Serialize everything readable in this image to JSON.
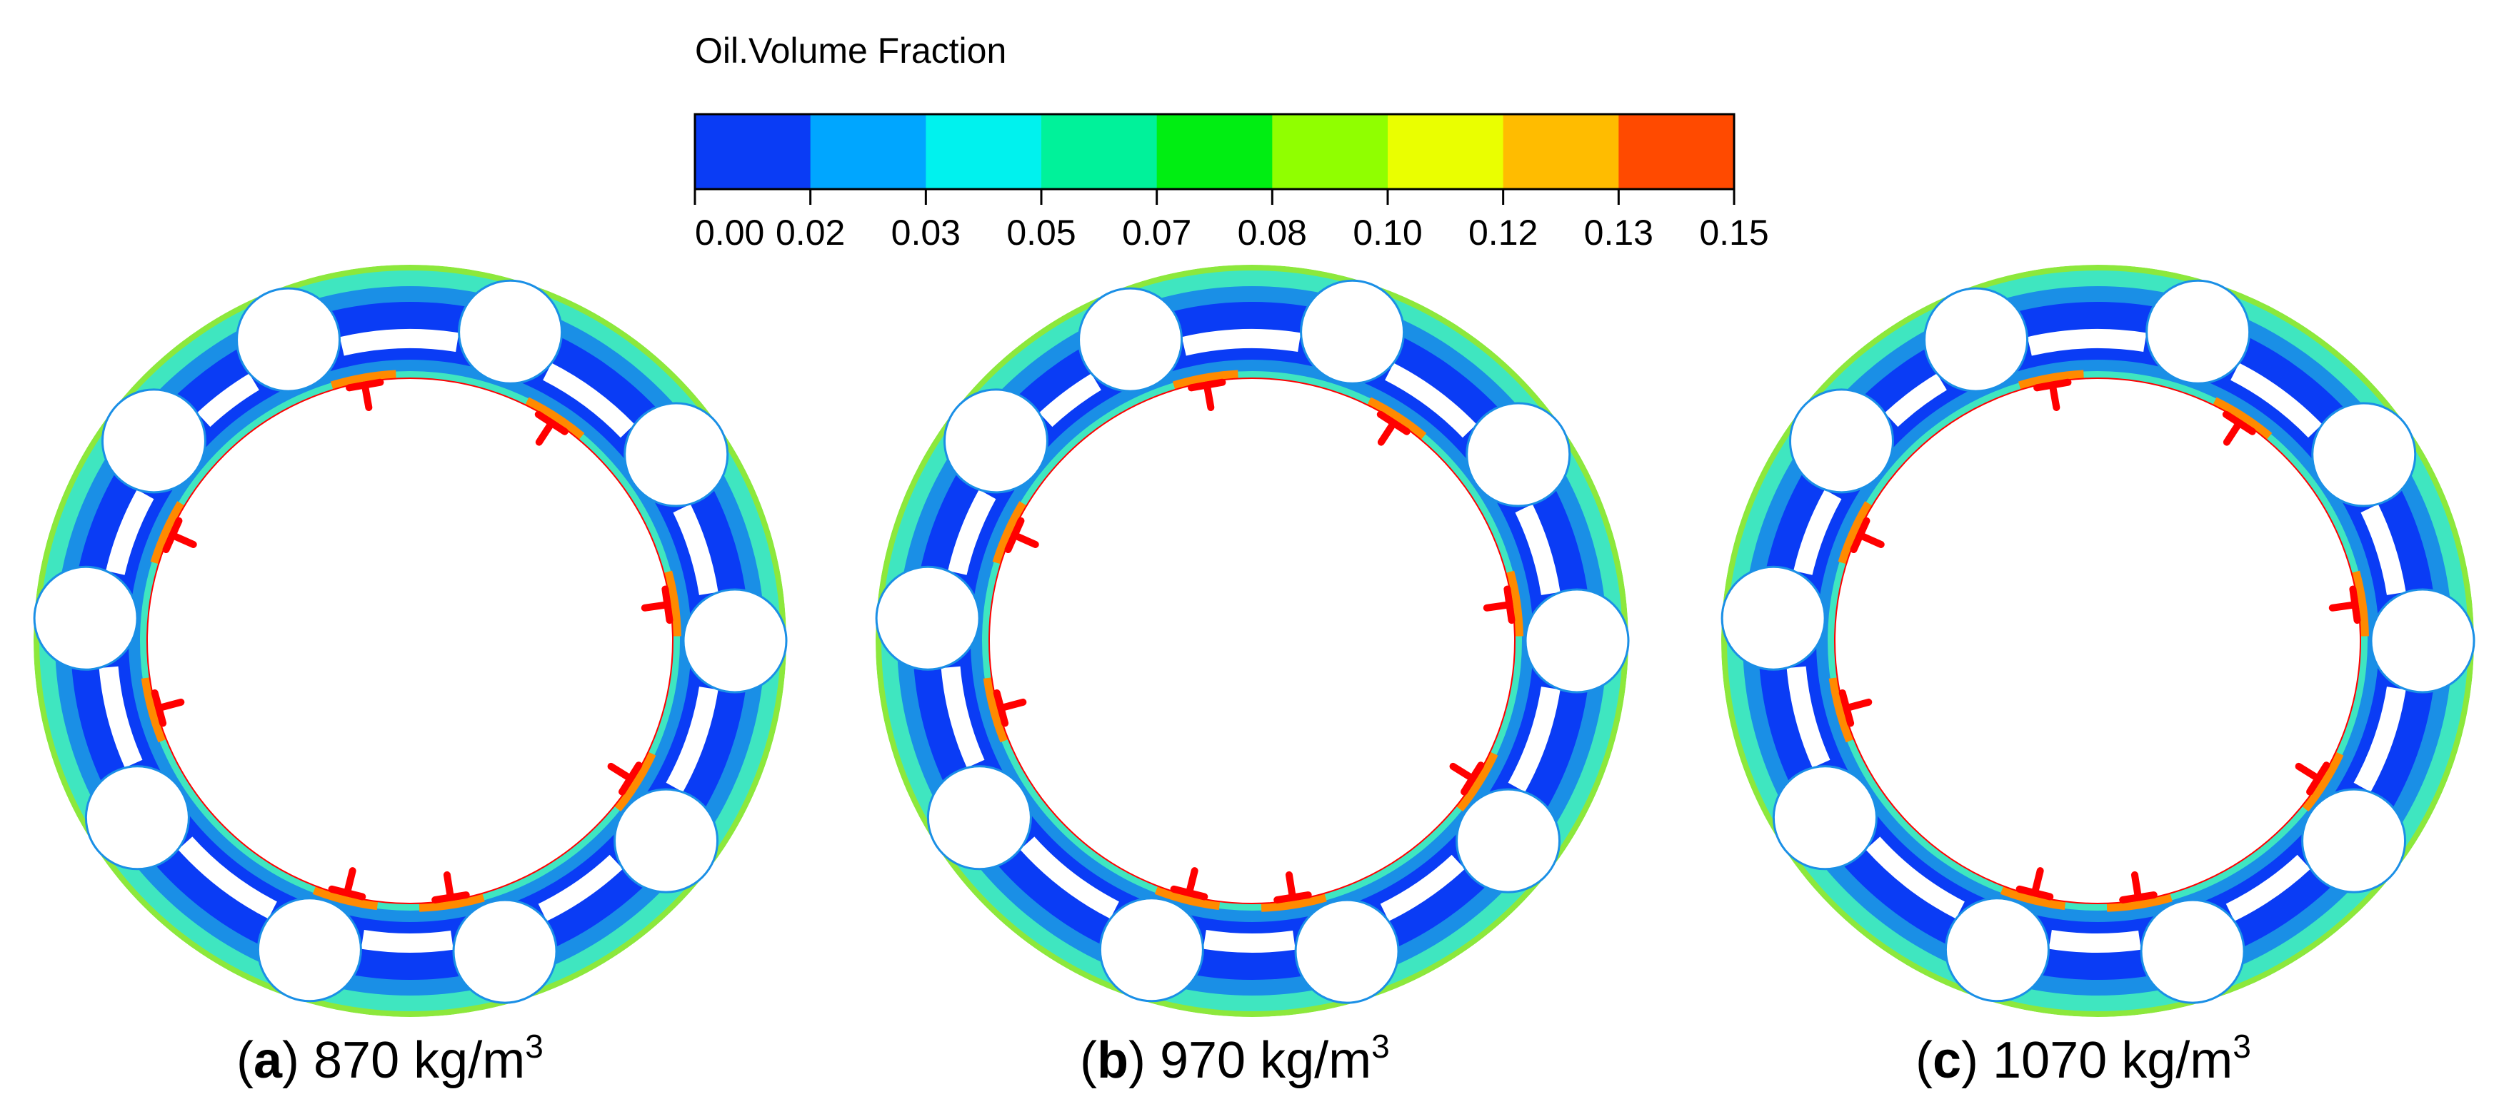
{
  "legend": {
    "title": "Oil.Volume Fraction",
    "ticks": [
      "0.00",
      "0.02",
      "0.03",
      "0.05",
      "0.07",
      "0.08",
      "0.10",
      "0.12",
      "0.13",
      "0.15"
    ],
    "colors": [
      "#0a3cf5",
      "#00a6ff",
      "#00f2ee",
      "#00f29a",
      "#00ee12",
      "#90ff00",
      "#eaff00",
      "#ffbc00",
      "#ff4a00"
    ]
  },
  "colors": {
    "ring_base": "#1a8fe6",
    "ring_dark": "#0a3cf5",
    "ring_edge": "#3fe6c0",
    "ring_rim": "#8ce83c",
    "oil_marker": "#ff0000",
    "hot_band": "#ff8a00"
  },
  "panels": [
    {
      "letter": "a",
      "density": "870",
      "unit": "kg/m",
      "superscript": "3"
    },
    {
      "letter": "b",
      "density": "970",
      "unit": "kg/m",
      "superscript": "3"
    },
    {
      "letter": "c",
      "density": "1070",
      "unit": "kg/m",
      "superscript": "3"
    }
  ]
}
